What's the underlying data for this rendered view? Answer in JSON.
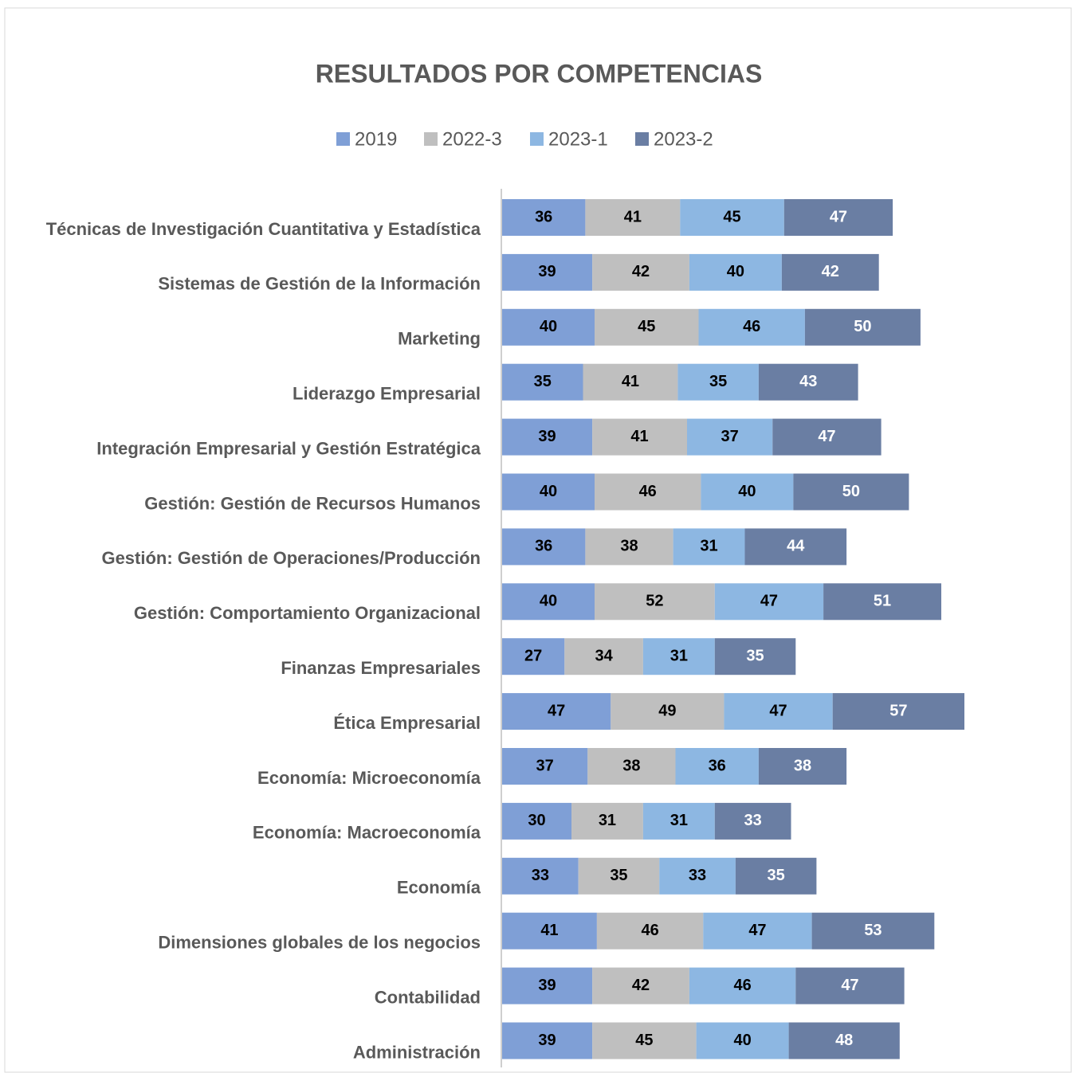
{
  "chart_data": {
    "type": "stacked-bar-horizontal",
    "title": "RESULTADOS POR COMPETENCIAS",
    "categories": [
      "Técnicas de Investigación Cuantitativa y Estadística",
      "Sistemas de Gestión de la Información",
      "Marketing",
      "Liderazgo Empresarial",
      "Integración Empresarial y Gestión Estratégica",
      "Gestión: Gestión de Recursos Humanos",
      "Gestión: Gestión de Operaciones/Producción",
      "Gestión: Comportamiento Organizacional",
      "Finanzas Empresariales",
      "Ética Empresarial",
      "Economía: Microeconomía",
      "Economía: Macroeconomía",
      "Economía",
      "Dimensiones globales de los negocios",
      "Contabilidad",
      "Administración"
    ],
    "series": [
      {
        "name": "2019",
        "color": "#7f9fd6",
        "label_color": "#000000",
        "values": [
          36,
          39,
          40,
          35,
          39,
          40,
          36,
          40,
          27,
          47,
          37,
          30,
          33,
          41,
          39,
          39
        ]
      },
      {
        "name": "2022-3",
        "color": "#bfbfbf",
        "label_color": "#000000",
        "values": [
          41,
          42,
          45,
          41,
          41,
          46,
          38,
          52,
          34,
          49,
          38,
          31,
          35,
          46,
          42,
          45
        ]
      },
      {
        "name": "2023-1",
        "color": "#8db7e2",
        "label_color": "#000000",
        "values": [
          45,
          40,
          46,
          35,
          37,
          40,
          31,
          47,
          31,
          47,
          36,
          31,
          33,
          47,
          46,
          40
        ]
      },
      {
        "name": "2023-2",
        "color": "#6a7ea3",
        "label_color": "#ffffff",
        "values": [
          47,
          42,
          50,
          43,
          47,
          50,
          44,
          51,
          35,
          57,
          38,
          33,
          35,
          53,
          47,
          48
        ]
      }
    ],
    "xlim": [
      0,
      240
    ],
    "legend": "top"
  }
}
